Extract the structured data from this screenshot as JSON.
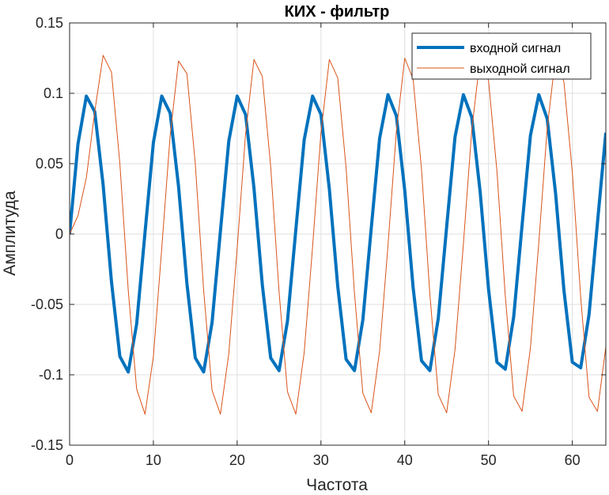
{
  "chart_data": {
    "type": "line",
    "title": "КИХ - фильтр",
    "xlabel": "Частота",
    "ylabel": "Амплитуда",
    "xlim": [
      0,
      64
    ],
    "ylim": [
      -0.15,
      0.15
    ],
    "xticks": [
      0,
      10,
      20,
      30,
      40,
      50,
      60
    ],
    "yticks": [
      -0.15,
      -0.1,
      -0.05,
      0,
      0.05,
      0.1,
      0.15
    ],
    "xtick_labels": [
      "0",
      "10",
      "20",
      "30",
      "40",
      "50",
      "60"
    ],
    "ytick_labels": [
      "-0.15",
      "-0.1",
      "-0.05",
      "0",
      "0.05",
      "0.1",
      "0.15"
    ],
    "grid": true,
    "legend_position": "top-right",
    "x": [
      0,
      1,
      2,
      3,
      4,
      5,
      6,
      7,
      8,
      9,
      10,
      11,
      12,
      13,
      14,
      15,
      16,
      17,
      18,
      19,
      20,
      21,
      22,
      23,
      24,
      25,
      26,
      27,
      28,
      29,
      30,
      31,
      32,
      33,
      34,
      35,
      36,
      37,
      38,
      39,
      40,
      41,
      42,
      43,
      44,
      45,
      46,
      47,
      48,
      49,
      50,
      51,
      52,
      53,
      54,
      55,
      56,
      57,
      58,
      59,
      60,
      61,
      62,
      63,
      64
    ],
    "series": [
      {
        "name": "входной сигнал",
        "color": "#0072BD",
        "line_width": "thick",
        "values": [
          0,
          0.064,
          0.098,
          0.087,
          0.035,
          -0.034,
          -0.087,
          -0.098,
          -0.064,
          0.001,
          0.065,
          0.098,
          0.086,
          0.034,
          -0.035,
          -0.088,
          -0.098,
          -0.063,
          0.002,
          0.066,
          0.098,
          0.085,
          0.033,
          -0.036,
          -0.088,
          -0.097,
          -0.062,
          0.003,
          0.067,
          0.098,
          0.085,
          0.032,
          -0.037,
          -0.089,
          -0.097,
          -0.061,
          0.004,
          0.068,
          0.099,
          0.084,
          0.031,
          -0.038,
          -0.09,
          -0.097,
          -0.06,
          0.005,
          0.069,
          0.099,
          0.083,
          0.03,
          -0.039,
          -0.091,
          -0.096,
          -0.059,
          0.006,
          0.07,
          0.099,
          0.082,
          0.029,
          -0.04,
          -0.091,
          -0.095,
          -0.057,
          0.008,
          0.072
        ]
      },
      {
        "name": "выходной сигнал",
        "color": "#D95319",
        "line_width": "thin",
        "values": [
          0,
          0.013,
          0.04,
          0.087,
          0.127,
          0.115,
          0.05,
          -0.04,
          -0.11,
          -0.128,
          -0.087,
          -0.01,
          0.07,
          0.123,
          0.114,
          0.05,
          -0.04,
          -0.111,
          -0.128,
          -0.085,
          -0.01,
          0.071,
          0.124,
          0.112,
          0.048,
          -0.041,
          -0.112,
          -0.128,
          -0.084,
          -0.009,
          0.072,
          0.124,
          0.111,
          0.047,
          -0.042,
          -0.113,
          -0.127,
          -0.083,
          -0.008,
          0.073,
          0.125,
          0.11,
          0.046,
          -0.043,
          -0.114,
          -0.127,
          -0.082,
          -0.007,
          0.074,
          0.125,
          0.109,
          0.045,
          -0.044,
          -0.115,
          -0.126,
          -0.081,
          -0.006,
          0.075,
          0.126,
          0.108,
          0.044,
          -0.045,
          -0.116,
          -0.126,
          -0.08
        ]
      }
    ]
  }
}
